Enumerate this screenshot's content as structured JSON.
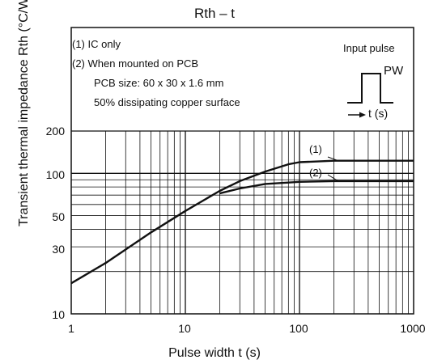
{
  "chart_data": {
    "type": "line",
    "title": "Rth  –  t",
    "xlabel": "Pulse width   t   (s)",
    "ylabel": "Transient thermal impedance    Rth    (°C/W)",
    "x_scale": "log",
    "y_scale": "log",
    "xlim": [
      1,
      1000
    ],
    "ylim": [
      10,
      200
    ],
    "x_ticks": [
      "1",
      "10",
      "100",
      "1000"
    ],
    "y_ticks": [
      "10",
      "30",
      "50",
      "100",
      "200"
    ],
    "grid": true,
    "notes": [
      "(1)  IC only",
      "(2)  When mounted on PCB",
      "PCB size: 60 x 30 x 1.6 mm",
      "50% dissipating copper surface"
    ],
    "inset": {
      "title": "Input pulse",
      "pw_label": "PW",
      "t_label": "t (s)"
    },
    "series": [
      {
        "name": "(1)",
        "x": [
          1,
          2,
          5,
          10,
          20,
          30,
          50,
          80,
          100,
          200,
          500,
          1000
        ],
        "y": [
          16.5,
          23,
          38,
          54,
          75,
          88,
          103,
          116,
          120,
          123,
          123,
          123
        ]
      },
      {
        "name": "(2)",
        "x": [
          20,
          30,
          50,
          80,
          100,
          200,
          500,
          1000
        ],
        "y": [
          72,
          78,
          84,
          86,
          87,
          88,
          88,
          88
        ]
      }
    ]
  }
}
